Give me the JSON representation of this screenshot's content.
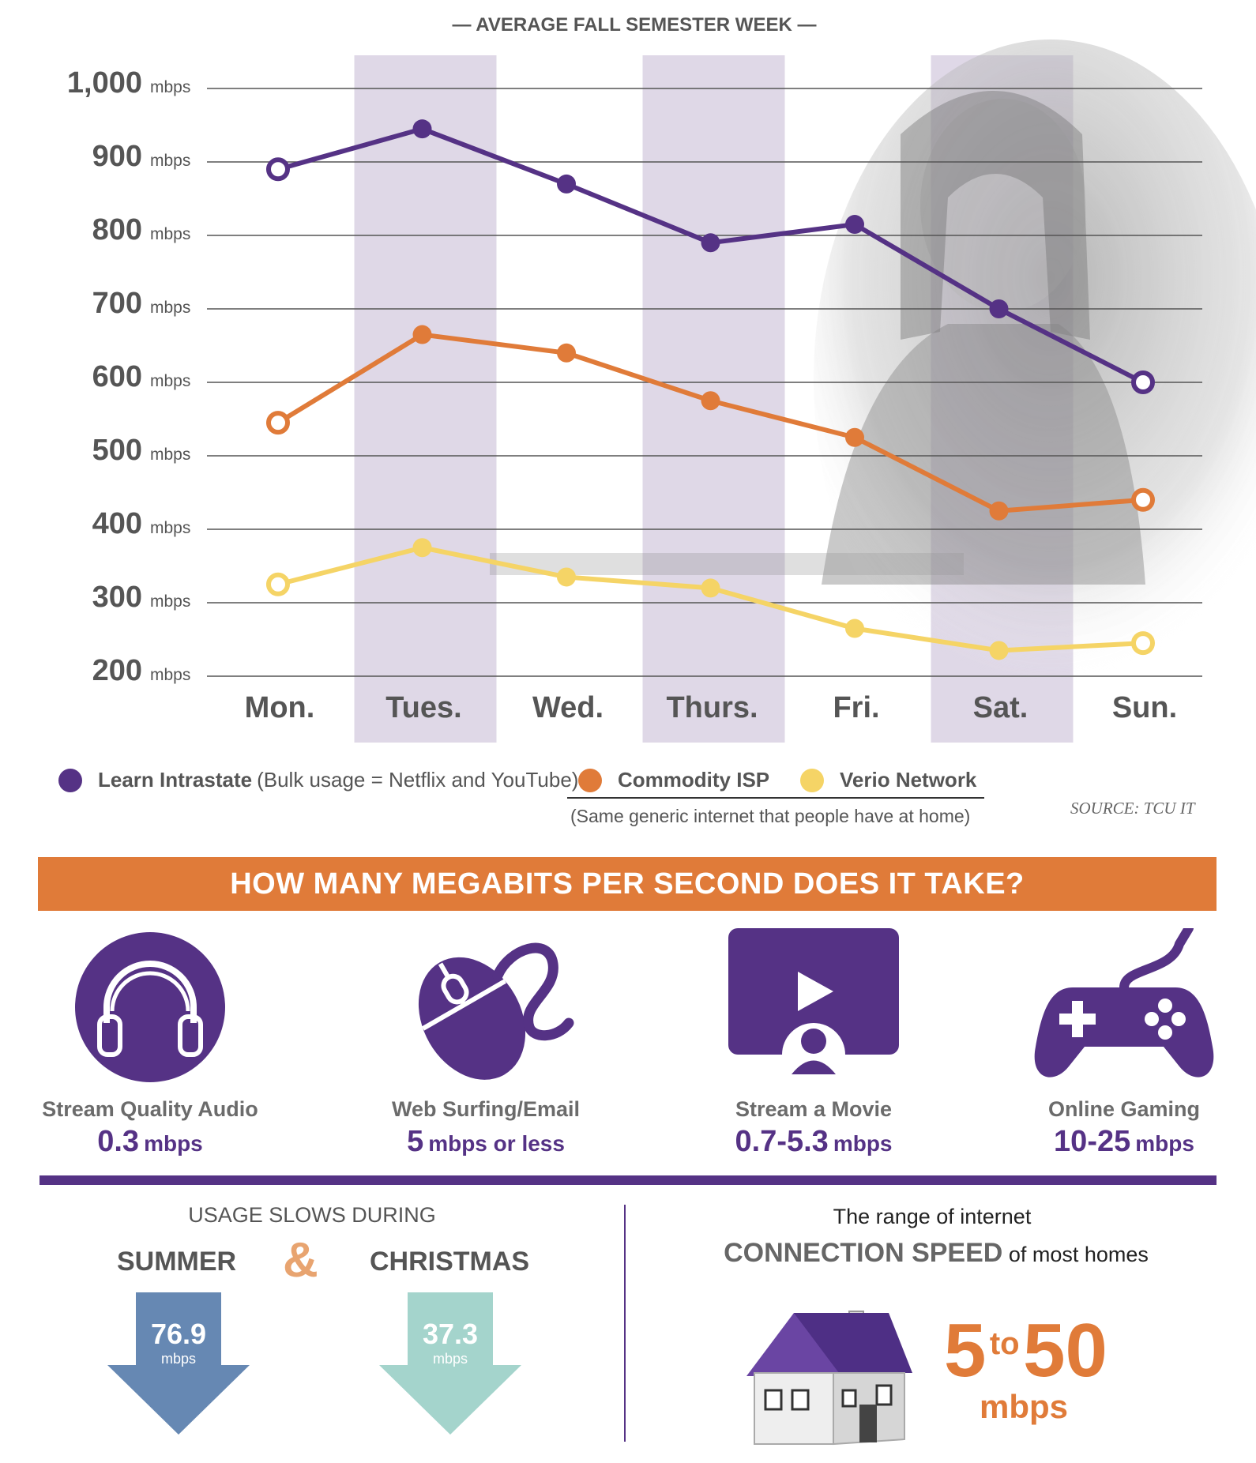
{
  "chart_data": {
    "type": "line",
    "title": "— AVERAGE FALL SEMESTER WEEK —",
    "categories": [
      "Mon.",
      "Tues.",
      "Wed.",
      "Thurs.",
      "Fri.",
      "Sat.",
      "Sun."
    ],
    "y_tick_labels": [
      "1,000",
      "900",
      "800",
      "700",
      "600",
      "500",
      "400",
      "300",
      "200"
    ],
    "y_unit": "mbps",
    "ylim": [
      200,
      1000
    ],
    "grid": true,
    "legend_position": "bottom",
    "series": [
      {
        "name": "Learn Intrastate",
        "color": "#553285",
        "values": [
          890,
          945,
          870,
          790,
          815,
          700,
          600
        ]
      },
      {
        "name": "Commodity ISP",
        "color": "#e07b39",
        "values": [
          545,
          665,
          640,
          575,
          525,
          425,
          440
        ]
      },
      {
        "name": "Verio Network",
        "color": "#f5d466",
        "values": [
          325,
          375,
          335,
          320,
          265,
          235,
          245
        ]
      }
    ]
  },
  "legend": {
    "learn_name": "Learn Intrastate",
    "learn_note": "(Bulk usage = Netflix and YouTube)",
    "commodity_name": "Commodity ISP",
    "verio_name": "Verio Network",
    "generic_note": "(Same generic internet that people have at home)",
    "source": "SOURCE: TCU IT"
  },
  "banner": "HOW MANY MEGABITS PER SECOND DOES IT TAKE?",
  "uses": [
    {
      "label": "Stream Quality Audio",
      "value": "0.3",
      "unit": "mbps",
      "icon": "headphones-icon"
    },
    {
      "label": "Web Surfing/Email",
      "value": "5",
      "unit": "mbps or less",
      "icon": "mouse-icon"
    },
    {
      "label": "Stream a Movie",
      "value": "0.7-5.3",
      "unit": "mbps",
      "icon": "movie-screen-icon"
    },
    {
      "label": "Online Gaming",
      "value": "10-25",
      "unit": "mbps",
      "icon": "game-controller-icon"
    }
  ],
  "slows": {
    "heading": "USAGE SLOWS DURING",
    "summer": "SUMMER",
    "amp": "&",
    "christmas": "CHRISTMAS",
    "summer_value": "76.9",
    "christmas_value": "37.3",
    "unit": "mbps"
  },
  "home": {
    "line1": "The range of  internet",
    "line2_bold": "CONNECTION SPEED",
    "line2_rest": "of most homes",
    "range_low": "5",
    "range_to": "to",
    "range_high": "50",
    "range_unit": "mbps"
  },
  "colors": {
    "purple": "#553285",
    "orange": "#e07b39",
    "yellow": "#f5d466",
    "band": "#d9d1e3",
    "summer_arrow": "#6688b3",
    "christmas_arrow": "#a4d4cc"
  }
}
